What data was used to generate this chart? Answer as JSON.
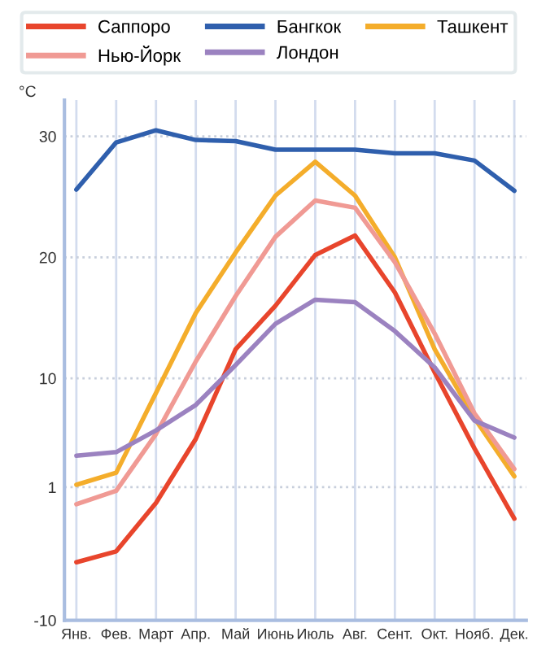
{
  "chart_data": {
    "type": "line",
    "ylabel": "°C",
    "categories": [
      "Янв.",
      "Фев.",
      "Март",
      "Апр.",
      "Май",
      "Июнь",
      "Июль",
      "Авг.",
      "Сент.",
      "Окт.",
      "Нояб.",
      "Дек."
    ],
    "series": [
      {
        "name": "Саппоро",
        "color": "#e8452c",
        "values": [
          -5.2,
          -4.3,
          -0.3,
          5.0,
          12.4,
          16.0,
          20.2,
          21.8,
          17.1,
          10.5,
          4.2,
          -1.6
        ]
      },
      {
        "name": "Бангкок",
        "color": "#2f5fad",
        "values": [
          25.6,
          29.5,
          30.5,
          29.7,
          29.6,
          28.9,
          28.9,
          28.9,
          28.6,
          28.6,
          28.0,
          25.5
        ]
      },
      {
        "name": "Ташкент",
        "color": "#f4ad2b",
        "values": [
          1.2,
          2.2,
          8.8,
          15.4,
          20.4,
          25.1,
          27.9,
          25.1,
          20.0,
          12.4,
          6.7,
          1.9
        ]
      },
      {
        "name": "Нью-Йорк",
        "color": "#f09a94",
        "values": [
          -0.4,
          0.7,
          5.4,
          11.4,
          16.8,
          21.7,
          24.7,
          24.1,
          19.6,
          13.7,
          7.1,
          2.5
        ]
      },
      {
        "name": "Лондон",
        "color": "#9b82c0",
        "values": [
          3.6,
          3.9,
          5.7,
          7.8,
          11.1,
          14.5,
          16.5,
          16.3,
          13.9,
          10.9,
          6.5,
          5.1
        ]
      }
    ],
    "ylim": [
      -10,
      33
    ],
    "yticks": [
      -10,
      1,
      10,
      20,
      30
    ],
    "grid": true,
    "legend": "top",
    "marker": "none",
    "line_style": "solid"
  }
}
